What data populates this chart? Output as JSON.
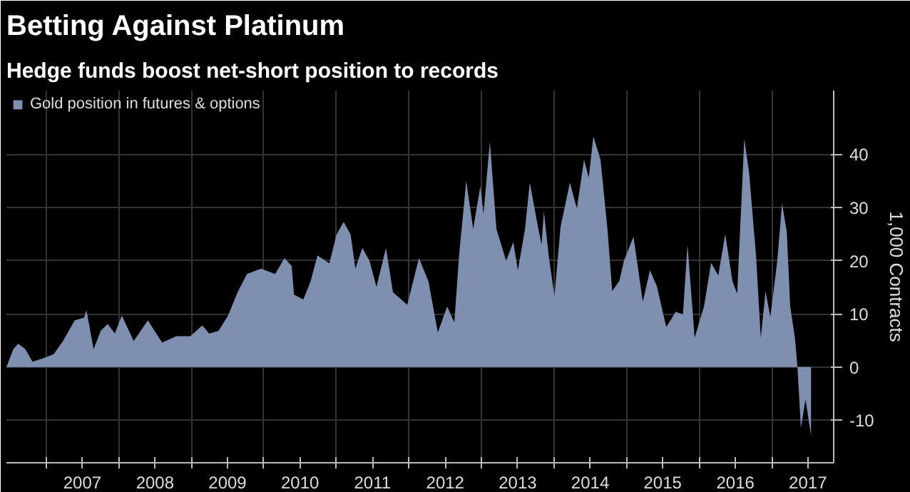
{
  "chart_data": {
    "type": "area",
    "title": "Betting Against Platinum",
    "subtitle": "Hedge funds boost net-short position to records",
    "ylabel": "1,000 Contracts",
    "x": [
      "2006-06-15",
      "2006-07-20",
      "2006-08-13",
      "2006-09-18",
      "2006-10-24",
      "2006-12-22",
      "2007-02-08",
      "2007-03-27",
      "2007-05-25",
      "2007-07-11",
      "2007-07-23",
      "2007-08-28",
      "2007-10-03",
      "2007-11-07",
      "2007-12-13",
      "2008-01-17",
      "2008-03-17",
      "2008-05-27",
      "2008-08-07",
      "2008-10-17",
      "2008-12-27",
      "2009-02-25",
      "2009-04-01",
      "2009-05-18",
      "2009-07-05",
      "2009-08-22",
      "2009-10-08",
      "2009-12-18",
      "2010-02-27",
      "2010-04-15",
      "2010-05-21",
      "2010-06-02",
      "2010-07-19",
      "2010-08-24",
      "2010-09-28",
      "2010-11-27",
      "2011-01-02",
      "2011-02-07",
      "2011-03-14",
      "2011-04-07",
      "2011-05-12",
      "2011-06-17",
      "2011-07-22",
      "2011-09-08",
      "2011-10-13",
      "2011-12-24",
      "2012-02-21",
      "2012-04-09",
      "2012-05-26",
      "2012-07-12",
      "2012-08-17",
      "2012-09-10",
      "2012-10-16",
      "2012-11-20",
      "2012-12-26",
      "2013-01-11",
      "2013-02-12",
      "2013-03-17",
      "2013-05-05",
      "2013-06-10",
      "2013-07-03",
      "2013-08-08",
      "2013-09-01",
      "2013-10-07",
      "2013-10-30",
      "2013-11-11",
      "2013-12-05",
      "2014-01-03",
      "2014-02-03",
      "2014-03-22",
      "2014-04-26",
      "2014-06-01",
      "2014-06-25",
      "2014-07-18",
      "2014-08-23",
      "2014-09-27",
      "2014-10-21",
      "2014-11-26",
      "2014-12-19",
      "2015-02-05",
      "2015-03-24",
      "2015-04-29",
      "2015-06-03",
      "2015-07-20",
      "2015-09-06",
      "2015-10-12",
      "2015-11-04",
      "2015-12-10",
      "2016-01-26",
      "2016-03-02",
      "2016-04-07",
      "2016-05-12",
      "2016-06-17",
      "2016-07-11",
      "2016-08-16",
      "2016-09-09",
      "2016-10-14",
      "2016-11-07",
      "2016-12-01",
      "2016-12-25",
      "2017-01-29",
      "2017-02-22",
      "2017-03-18",
      "2017-04-04",
      "2017-04-28",
      "2017-05-11",
      "2017-05-28",
      "2017-06-20",
      "2017-07-18"
    ],
    "series": [
      {
        "name": "Gold position in futures & options",
        "color": "#7f8fb0",
        "values": [
          0,
          3.4,
          4.4,
          3.4,
          1,
          1.7,
          2.4,
          4.9,
          8.8,
          9.3,
          10.7,
          3.4,
          6.8,
          8.1,
          6.3,
          9.7,
          4.9,
          8.8,
          4.6,
          5.8,
          5.8,
          7.8,
          6.3,
          6.8,
          9.7,
          14.1,
          17.5,
          18.5,
          17.5,
          20.5,
          19,
          13.6,
          12.7,
          16.1,
          21,
          19.5,
          24.9,
          27.3,
          24.9,
          18.5,
          22.4,
          20,
          15.1,
          22.4,
          14.1,
          11.7,
          20.5,
          16.1,
          6.5,
          11.4,
          8.4,
          21,
          35,
          26,
          34,
          28.8,
          42.4,
          26,
          20,
          23.5,
          18.2,
          26,
          34.7,
          27.4,
          23,
          29.3,
          21,
          13.3,
          26.4,
          34.7,
          29.8,
          39,
          35.6,
          43.4,
          39,
          26,
          14.3,
          16.2,
          20,
          24.5,
          12.3,
          18.2,
          15.2,
          7.5,
          10.4,
          9.9,
          23,
          5.5,
          11.4,
          19.6,
          17.2,
          25,
          16.2,
          13.8,
          42.9,
          36.6,
          21,
          5.5,
          14.3,
          9.4,
          20,
          30.8,
          25.4,
          11.4,
          5.5,
          -0.3,
          -11.5,
          -6.1,
          -12.9
        ]
      }
    ],
    "xlim": [
      "2006-06-15",
      "2017-11-09"
    ],
    "xticks": [
      {
        "value": "2007-01-01",
        "label": null
      },
      {
        "value": "2007-07-02",
        "label": "2007"
      },
      {
        "value": "2008-01-01",
        "label": null
      },
      {
        "value": "2008-07-02",
        "label": "2008"
      },
      {
        "value": "2009-01-01",
        "label": null
      },
      {
        "value": "2009-07-02",
        "label": "2009"
      },
      {
        "value": "2010-01-01",
        "label": null
      },
      {
        "value": "2010-07-02",
        "label": "2010"
      },
      {
        "value": "2011-01-01",
        "label": null
      },
      {
        "value": "2011-07-02",
        "label": "2011"
      },
      {
        "value": "2012-01-01",
        "label": null
      },
      {
        "value": "2012-07-02",
        "label": "2012"
      },
      {
        "value": "2013-01-01",
        "label": null
      },
      {
        "value": "2013-07-02",
        "label": "2013"
      },
      {
        "value": "2014-01-01",
        "label": null
      },
      {
        "value": "2014-07-02",
        "label": "2014"
      },
      {
        "value": "2015-01-01",
        "label": null
      },
      {
        "value": "2015-07-02",
        "label": "2015"
      },
      {
        "value": "2016-01-01",
        "label": null
      },
      {
        "value": "2016-07-02",
        "label": "2016"
      },
      {
        "value": "2017-01-01",
        "label": null
      },
      {
        "value": "2017-07-02",
        "label": "2017"
      }
    ],
    "ylim": [
      -18,
      52
    ],
    "yticks": [
      -10,
      0,
      10,
      20,
      30,
      40
    ],
    "grid": true,
    "legend": "top left"
  }
}
